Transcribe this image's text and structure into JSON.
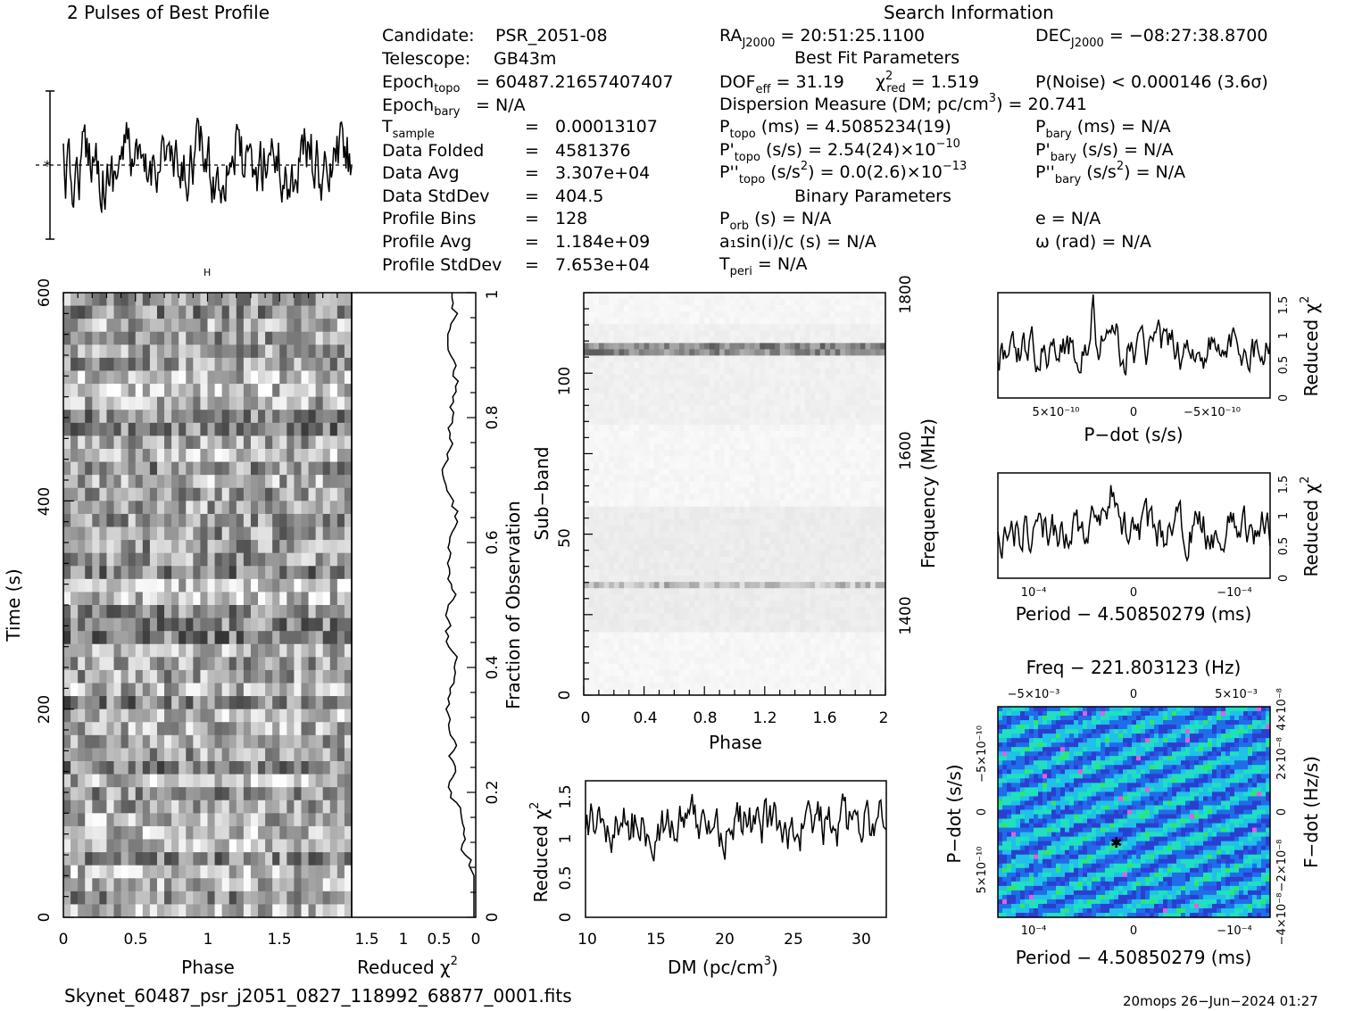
{
  "title_profile": "2 Pulses of Best Profile",
  "title_search": "Search Information",
  "candidate_info": [
    {
      "label": "Candidate:",
      "value": "PSR_2051-08"
    },
    {
      "label": "Telescope:",
      "value": "GB43m"
    },
    {
      "label": "Epoch",
      "sub": "topo",
      "value": "= 60487.21657407407"
    },
    {
      "label": "Epoch",
      "sub": "bary",
      "value": "= N/A"
    },
    {
      "label": "T",
      "sub": "sample",
      "value": "0.00013107"
    },
    {
      "label": "Data Folded",
      "value": "4581376"
    },
    {
      "label": "Data Avg",
      "value": "3.307e+04"
    },
    {
      "label": "Data StdDev",
      "value": "404.5"
    },
    {
      "label": "Profile Bins",
      "value": "128"
    },
    {
      "label": "Profile Avg",
      "value": "1.184e+09"
    },
    {
      "label": "Profile StdDev",
      "value": "7.653e+04"
    }
  ],
  "search_info": {
    "ra": "= 20:51:25.1100",
    "dec": "= −08:27:38.8700",
    "best_fit_title": "Best Fit Parameters",
    "dof": "= 31.19",
    "chi2": "= 1.519",
    "pnoise": "P(Noise) < 0.000146   (3.6σ)",
    "dm_line": "Dispersion Measure (DM; pc/cm",
    "dm_value": ") = 20.741",
    "ptopo": "(ms) =  4.5085234(19)",
    "pbary": "(ms) = N/A",
    "pdtopo": "(s/s) =  2.54(24)×10",
    "pdtopo_exp": "−10",
    "pdbary": "(s/s) = N/A",
    "pddtopo": "= 0.0(2.6)×10",
    "pddtopo_exp": "−13",
    "pddbary": "= N/A",
    "binary_title": "Binary Parameters",
    "porb": "(s) = N/A",
    "ecc": "e = N/A",
    "a1": "a₁sin(i)/c (s) = N/A",
    "omega": "ω (rad) = N/A",
    "tperi": "= N/A"
  },
  "labels": {
    "time_axis": "Time (s)",
    "phase": "Phase",
    "reduced_chi2": "Reduced χ",
    "fraction_obs": "Fraction of Observation",
    "subband": "Sub−band",
    "frequency": "Frequency (MHz)",
    "dm_axis": "DM (pc/cm",
    "pdot_axis": "P−dot (s/s)",
    "period_axis": "Period − 4.50850279 (ms)",
    "freq_axis": "Freq − 221.803123 (Hz)",
    "fdot_axis": "F−dot (Hz/s)",
    "footer_file": "Skynet_60487_psr_j2051_0827_118992_68877_0001.fits",
    "footer_date": "20mops 26−Jun−2024 01:27"
  },
  "chart_data": [
    {
      "type": "line",
      "name": "profile",
      "title": "2 Pulses of Best Profile",
      "xlim": [
        0,
        2
      ],
      "description_only": false
    },
    {
      "type": "heatmap",
      "name": "time-phase",
      "xlabel": "Phase",
      "ylabel": "Time (s)",
      "xlim": [
        0,
        2
      ],
      "ylim": [
        0,
        600
      ],
      "xticks": [
        "0",
        "0.5",
        "1",
        "1.5"
      ],
      "yticks": [
        "0",
        "200",
        "400",
        "600"
      ]
    },
    {
      "type": "line",
      "name": "time-chi2",
      "xlabel": "Reduced χ²",
      "ylabel": "Fraction of Observation",
      "xlim": [
        1.5,
        0
      ],
      "ylim": [
        0,
        1
      ],
      "xticks": [
        "1.5",
        "1",
        "0.5",
        "0"
      ],
      "yticks": [
        "0",
        "0.2",
        "0.4",
        "0.6",
        "0.8",
        "1"
      ]
    },
    {
      "type": "heatmap",
      "name": "subband-phase",
      "xlabel": "Phase",
      "ylabel": "Sub−band",
      "y2label": "Frequency (MHz)",
      "xlim": [
        0,
        2
      ],
      "ylim": [
        0,
        128
      ],
      "xticks": [
        "0",
        "0.4",
        "0.8",
        "1.2",
        "1.6",
        "2"
      ],
      "yticks": [
        "0",
        "50",
        "100"
      ],
      "y2ticks": [
        "1400",
        "1600",
        "1800"
      ]
    },
    {
      "type": "line",
      "name": "dm-chi2",
      "xlabel": "DM (pc/cm³)",
      "ylabel": "Reduced χ²",
      "xlim": [
        10,
        32
      ],
      "ylim": [
        0,
        1.7
      ],
      "xticks": [
        "10",
        "15",
        "20",
        "25",
        "30"
      ],
      "yticks": [
        "0",
        "0.5",
        "1",
        "1.5"
      ]
    },
    {
      "type": "line",
      "name": "pdot-chi2",
      "xlabel": "P−dot (s/s)",
      "ylabel": "Reduced χ²",
      "ylim": [
        0,
        1.6
      ],
      "xticks": [
        "5×10⁻¹⁰",
        "0",
        "−5×10⁻¹⁰"
      ],
      "yticks": [
        "0",
        "0.5",
        "1",
        "1.5"
      ]
    },
    {
      "type": "line",
      "name": "period-chi2",
      "xlabel": "Period − 4.50850279 (ms)",
      "ylabel": "Reduced χ²",
      "ylim": [
        0,
        1.6
      ],
      "xticks": [
        "10⁻⁴",
        "0",
        "−10⁻⁴"
      ],
      "yticks": [
        "0",
        "0.5",
        "1",
        "1.5"
      ]
    },
    {
      "type": "heatmap",
      "name": "period-pdot",
      "xlabel": "Period − 4.50850279 (ms)",
      "ylabel": "P−dot (s/s)",
      "x2label": "Freq − 221.803123 (Hz)",
      "y2label": "F−dot (Hz/s)",
      "xticks": [
        "10⁻⁴",
        "0",
        "−10⁻⁴"
      ],
      "x2ticks": [
        "−5×10⁻³",
        "0",
        "5×10⁻³"
      ],
      "yticks": [
        "−5×10⁻¹⁰",
        "0",
        "5×10⁻¹⁰"
      ],
      "y2ticks": [
        "−4×10⁻⁸",
        "−2×10⁻⁸",
        "0",
        "2×10⁻⁸",
        "4×10⁻⁸"
      ]
    }
  ]
}
